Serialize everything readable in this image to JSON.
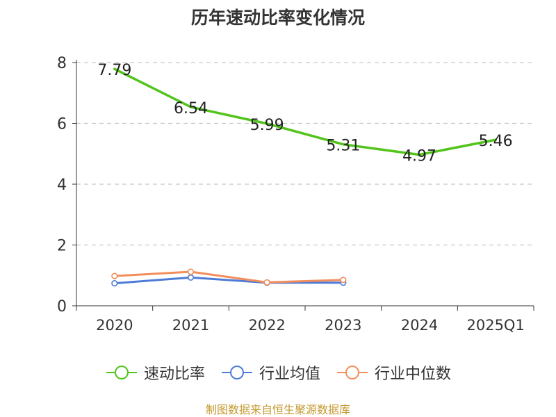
{
  "title": "历年速动比率变化情况",
  "source": "制图数据来自恒生聚源数据库",
  "chart_data": {
    "type": "line",
    "title": "历年速动比率变化情况",
    "categories": [
      "2020",
      "2021",
      "2022",
      "2023",
      "2024",
      "2025Q1"
    ],
    "ylim": [
      0,
      8
    ],
    "yticks": [
      0,
      2,
      4,
      6,
      8
    ],
    "grid": true,
    "legend_position": "bottom",
    "series": [
      {
        "name": "速动比率",
        "color": "#52c41a",
        "values": [
          7.79,
          6.54,
          5.99,
          5.31,
          4.97,
          5.46
        ],
        "labels": [
          "7.79",
          "6.54",
          "5.99",
          "5.31",
          "4.97",
          "5.46"
        ]
      },
      {
        "name": "行业均值",
        "color": "#4e7bd8",
        "values": [
          0.74,
          0.93,
          0.76,
          0.76,
          null,
          null
        ]
      },
      {
        "name": "行业中位数",
        "color": "#f28e5c",
        "values": [
          0.98,
          1.12,
          0.77,
          0.85,
          null,
          null
        ]
      }
    ]
  }
}
